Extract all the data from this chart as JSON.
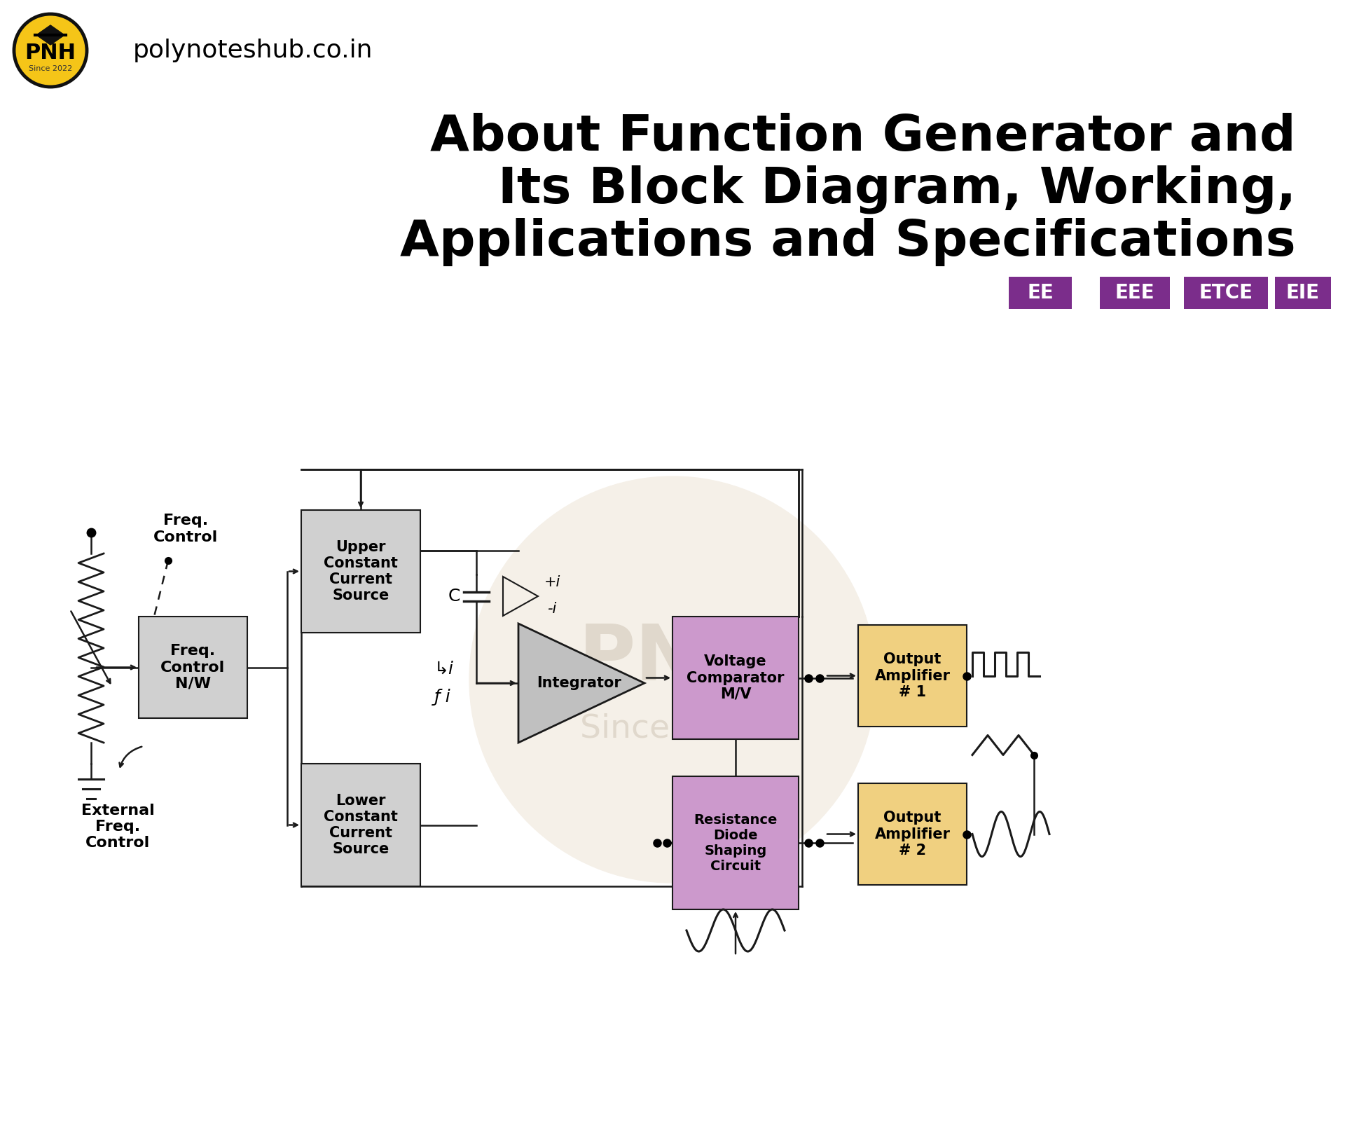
{
  "title_line1": "About Function Generator and",
  "title_line2": "Its Block Diagram, Working,",
  "title_line3": "Applications and Specifications",
  "website": "polynoteshub.co.in",
  "tags": [
    "EE",
    "EEE",
    "ETCE",
    "EIE"
  ],
  "tag_color": "#7B2D8B",
  "bg_color": "#FFFFFF",
  "logo_color": "#F5C518",
  "logo_border": "#1A1A1A",
  "block_gray": "#D0D0D0",
  "block_purple": "#CC99CC",
  "block_wheat": "#F0D080",
  "line_color": "#1A1A1A",
  "watermark_circle_color": "#F5F0E8",
  "watermark_text_color": "#E0D8CC"
}
